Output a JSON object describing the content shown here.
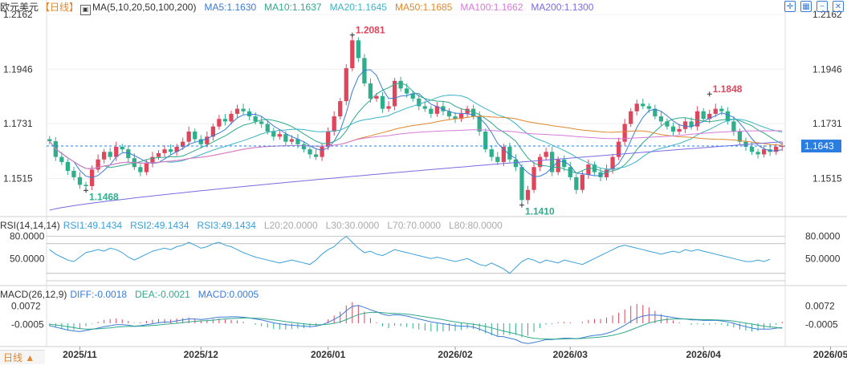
{
  "header": {
    "symbol": "欧元美元",
    "period": "【日线】",
    "ma_label": "MA(5,10,20,50,100,200)",
    "ma5": "MA5:1.1630",
    "ma10": "MA10:1.1637",
    "ma20": "MA20:1.1645",
    "ma50": "MA50:1.1685",
    "ma100": "MA100:1.1662",
    "ma200": "MA200:1.1300"
  },
  "rsi_header": {
    "label": "RSI(14,14,14)",
    "rsi1": "RSI1:49.1434",
    "rsi2": "RSI2:49.1434",
    "rsi3": "RSI3:49.1434",
    "l20": "L20:20.0000",
    "l30": "L30:30.0000",
    "l70": "L70:70.0000",
    "l80": "L80:80.0000"
  },
  "macd_header": {
    "label": "MACD(26,12,9)",
    "diff": "DIFF:-0.0018",
    "dea": "DEA:-0.0021",
    "macd": "MACD:0.0005"
  },
  "period_tag": "日线 ▲",
  "colors": {
    "up": "#e0455c",
    "down": "#2fae8c",
    "ma5": "#3a7bd5",
    "ma10": "#2fa88a",
    "ma20": "#3bb3c7",
    "ma50": "#e0872b",
    "ma100": "#d57ad9",
    "ma200": "#7a6ae0",
    "rsi": "#3aa0d9",
    "diff": "#3a7bd5",
    "dea": "#2fa88a",
    "last_price_bg": "#2b7de0"
  },
  "chart_data": {
    "type": "candlestick",
    "price_axis_ticks": [
      "1.2162",
      "1.1946",
      "1.1731",
      "1.1515"
    ],
    "ylim": [
      1.139,
      1.2162
    ],
    "last_price": "1.1643",
    "annotations": [
      {
        "label": "1.2081",
        "value": 1.2081,
        "kind": "high"
      },
      {
        "label": "1.1848",
        "value": 1.1848,
        "kind": "high"
      },
      {
        "label": "1.1468",
        "value": 1.1468,
        "kind": "low"
      },
      {
        "label": "1.1410",
        "value": 1.141,
        "kind": "low"
      }
    ],
    "x_ticks": [
      {
        "label": "2025/11",
        "index": 5
      },
      {
        "label": "2025/12",
        "index": 25
      },
      {
        "label": "2026/01",
        "index": 46
      },
      {
        "label": "2026/02",
        "index": 67
      },
      {
        "label": "2026/03",
        "index": 86
      },
      {
        "label": "2026/04",
        "index": 108
      },
      {
        "label": "2026/05",
        "index": 129
      }
    ],
    "close": [
      1.1662,
      1.16,
      1.158,
      1.1545,
      1.152,
      1.149,
      1.1485,
      1.155,
      1.159,
      1.162,
      1.16,
      1.164,
      1.163,
      1.1595,
      1.156,
      1.154,
      1.1575,
      1.16,
      1.1615,
      1.163,
      1.162,
      1.164,
      1.166,
      1.17,
      1.167,
      1.165,
      1.168,
      1.172,
      1.175,
      1.174,
      1.177,
      1.179,
      1.178,
      1.176,
      1.174,
      1.173,
      1.17,
      1.168,
      1.169,
      1.166,
      1.167,
      1.165,
      1.163,
      1.161,
      1.16,
      1.164,
      1.17,
      1.176,
      1.182,
      1.195,
      1.206,
      1.199,
      1.189,
      1.183,
      1.184,
      1.179,
      1.18,
      1.19,
      1.187,
      1.185,
      1.183,
      1.18,
      1.179,
      1.177,
      1.18,
      1.178,
      1.176,
      1.175,
      1.177,
      1.179,
      1.176,
      1.17,
      1.163,
      1.16,
      1.158,
      1.164,
      1.159,
      1.156,
      1.143,
      1.147,
      1.156,
      1.16,
      1.162,
      1.154,
      1.159,
      1.156,
      1.152,
      1.147,
      1.153,
      1.157,
      1.154,
      1.152,
      1.155,
      1.16,
      1.166,
      1.173,
      1.178,
      1.181,
      1.18,
      1.179,
      1.176,
      1.174,
      1.172,
      1.17,
      1.171,
      1.174,
      1.172,
      1.178,
      1.175,
      1.177,
      1.179,
      1.178,
      1.174,
      1.17,
      1.166,
      1.164,
      1.162,
      1.161,
      1.163,
      1.162,
      1.164,
      1.1643
    ],
    "rsi": [
      62,
      56,
      52,
      48,
      46,
      52,
      58,
      60,
      62,
      60,
      64,
      62,
      58,
      52,
      48,
      52,
      56,
      60,
      62,
      64,
      62,
      66,
      68,
      72,
      68,
      64,
      66,
      70,
      72,
      68,
      66,
      62,
      58,
      55,
      52,
      50,
      48,
      46,
      44,
      46,
      48,
      46,
      44,
      42,
      48,
      56,
      62,
      66,
      74,
      80,
      72,
      64,
      58,
      60,
      56,
      54,
      58,
      62,
      60,
      58,
      56,
      54,
      52,
      50,
      52,
      50,
      48,
      46,
      48,
      50,
      46,
      42,
      40,
      44,
      40,
      36,
      30,
      38,
      46,
      50,
      48,
      44,
      48,
      46,
      44,
      48,
      46,
      44,
      42,
      46,
      50,
      54,
      58,
      62,
      66,
      68,
      66,
      64,
      62,
      60,
      58,
      56,
      58,
      60,
      58,
      62,
      60,
      62,
      60,
      58,
      56,
      54,
      52,
      50,
      48,
      46,
      46,
      48,
      46,
      49
    ],
    "diff": [
      -0.001,
      -0.0016,
      -0.0022,
      -0.0028,
      -0.0032,
      -0.0034,
      -0.003,
      -0.0025,
      -0.002,
      -0.0014,
      -0.001,
      -0.0006,
      -0.0006,
      -0.0008,
      -0.0012,
      -0.001,
      -0.0006,
      -0.0002,
      0.0002,
      0.0005,
      0.0006,
      0.001,
      0.0014,
      0.0018,
      0.0018,
      0.0016,
      0.0018,
      0.0022,
      0.0026,
      0.0026,
      0.0027,
      0.0027,
      0.0025,
      0.0022,
      0.0018,
      0.0014,
      0.0008,
      0.0002,
      -0.0002,
      -0.0006,
      -0.0008,
      -0.001,
      -0.0012,
      -0.0014,
      -0.0012,
      -0.0006,
      0.0004,
      0.0016,
      0.003,
      0.0052,
      0.007,
      0.0074,
      0.0066,
      0.0056,
      0.0048,
      0.0038,
      0.0032,
      0.0036,
      0.0034,
      0.003,
      0.0024,
      0.0018,
      0.0012,
      0.0006,
      0.0002,
      -0.0002,
      -0.0006,
      -0.001,
      -0.0012,
      -0.0012,
      -0.0016,
      -0.0024,
      -0.0034,
      -0.0044,
      -0.0054,
      -0.0056,
      -0.0062,
      -0.0068,
      -0.008,
      -0.0084,
      -0.008,
      -0.0074,
      -0.0068,
      -0.0068,
      -0.0064,
      -0.0062,
      -0.0062,
      -0.0064,
      -0.006,
      -0.0054,
      -0.005,
      -0.0048,
      -0.0042,
      -0.0034,
      -0.0022,
      -0.0008,
      0.0008,
      0.0022,
      0.003,
      0.0034,
      0.0034,
      0.0032,
      0.0028,
      0.0024,
      0.002,
      0.0018,
      0.0014,
      0.0014,
      0.0012,
      0.0012,
      0.0012,
      0.001,
      0.0006,
      0.0,
      -0.0008,
      -0.0014,
      -0.002,
      -0.0024,
      -0.0024,
      -0.0024,
      -0.002,
      -0.0018
    ],
    "dea": [
      -0.0004,
      -0.0007,
      -0.001,
      -0.0014,
      -0.0018,
      -0.0022,
      -0.0024,
      -0.0024,
      -0.0023,
      -0.0021,
      -0.0019,
      -0.0016,
      -0.0014,
      -0.0013,
      -0.0013,
      -0.0012,
      -0.0011,
      -0.0009,
      -0.0007,
      -0.0004,
      -0.0002,
      0.0,
      0.0003,
      0.0006,
      0.0008,
      0.001,
      0.0011,
      0.0013,
      0.0016,
      0.0018,
      0.002,
      0.0021,
      0.0022,
      0.0022,
      0.0021,
      0.002,
      0.0017,
      0.0014,
      0.0011,
      0.0007,
      0.0004,
      0.0001,
      -0.0002,
      -0.0005,
      -0.0006,
      -0.0006,
      -0.0004,
      0.0,
      0.0006,
      0.0015,
      0.0026,
      0.0036,
      0.0042,
      0.0045,
      0.0046,
      0.0044,
      0.0042,
      0.0041,
      0.004,
      0.0038,
      0.0035,
      0.0031,
      0.0027,
      0.0023,
      0.0019,
      0.0015,
      0.001,
      0.0006,
      0.0002,
      -0.0001,
      -0.0004,
      -0.0008,
      -0.0013,
      -0.0019,
      -0.0026,
      -0.0032,
      -0.0038,
      -0.0044,
      -0.0051,
      -0.0058,
      -0.0062,
      -0.0064,
      -0.0065,
      -0.0066,
      -0.0066,
      -0.0065,
      -0.0064,
      -0.0064,
      -0.0063,
      -0.0061,
      -0.0059,
      -0.0057,
      -0.0054,
      -0.005,
      -0.0044,
      -0.0037,
      -0.0028,
      -0.0018,
      -0.0008,
      0.0001,
      0.0008,
      0.0013,
      0.0016,
      0.0018,
      0.0018,
      0.0018,
      0.0017,
      0.0016,
      0.0015,
      0.0015,
      0.0014,
      0.0013,
      0.0012,
      0.0009,
      0.0005,
      0.0001,
      -0.0003,
      -0.0008,
      -0.0012,
      -0.0015,
      -0.0017,
      -0.0021
    ],
    "macd_axis_ticks": [
      "0.0072",
      "-0.0005"
    ],
    "rsi_axis_ticks": [
      "80.0000",
      "50.0000"
    ]
  }
}
